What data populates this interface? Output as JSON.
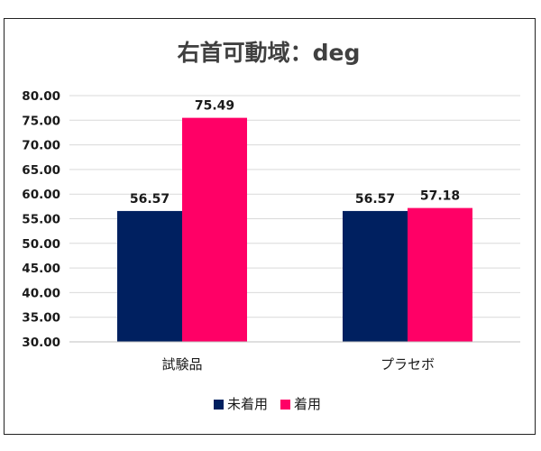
{
  "colors": {
    "series_1": "#002060",
    "series_2": "#FF0066",
    "grid": "#d9d9d9",
    "title": "#404040",
    "border": "#222222"
  },
  "chart_data": {
    "type": "bar",
    "title": "右首可動域：deg",
    "xlabel": "",
    "ylabel": "",
    "categories": [
      "試験品",
      "プラセボ"
    ],
    "series": [
      {
        "name": "未着用",
        "values": [
          56.57,
          56.57
        ]
      },
      {
        "name": "着用",
        "values": [
          75.49,
          57.18
        ]
      }
    ],
    "ylim": [
      30,
      80
    ],
    "ytick_step": 5,
    "ytick_labels": [
      "30.00",
      "35.00",
      "40.00",
      "45.00",
      "50.00",
      "55.00",
      "60.00",
      "65.00",
      "70.00",
      "75.00",
      "80.00"
    ],
    "data_labels": [
      [
        "56.57",
        "56.57"
      ],
      [
        "75.49",
        "57.18"
      ]
    ],
    "grid": true,
    "legend_position": "bottom"
  }
}
